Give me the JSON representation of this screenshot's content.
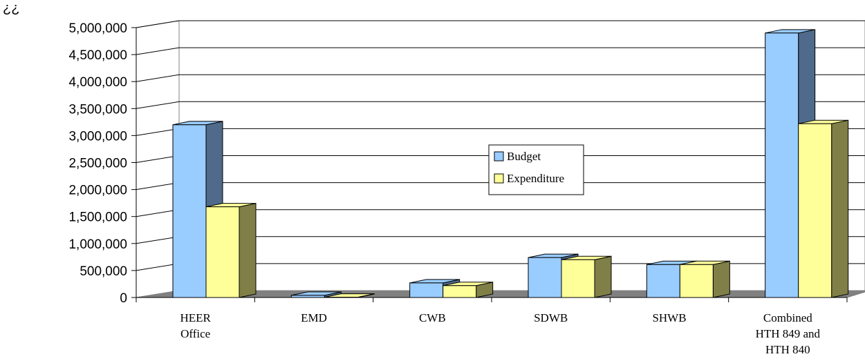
{
  "corner_text": "¿¿",
  "chart_data": {
    "type": "bar",
    "title": "",
    "xlabel": "",
    "ylabel": "",
    "ylim": [
      0,
      5000000
    ],
    "yticks": [
      "0",
      "500,000",
      "1,000,000",
      "1,500,000",
      "2,000,000",
      "2,500,000",
      "3,000,000",
      "3,500,000",
      "4,000,000",
      "4,500,000",
      "5,000,000"
    ],
    "categories": [
      [
        "HEER",
        "Office"
      ],
      [
        "EMD"
      ],
      [
        "CWB"
      ],
      [
        "SDWB"
      ],
      [
        "SHWB"
      ],
      [
        "Combined",
        "HTH 849 and",
        "HTH 840"
      ]
    ],
    "series": [
      {
        "name": "Budget",
        "values": [
          3200000,
          40000,
          270000,
          740000,
          610000,
          4900000
        ],
        "color": "#99ccff",
        "side_color": "#4f6a8a",
        "top_color": "#99ccff"
      },
      {
        "name": "Expenditure",
        "values": [
          1680000,
          5000,
          220000,
          700000,
          610000,
          3220000
        ],
        "color": "#ffff99",
        "side_color": "#7f7f47",
        "top_color": "#ffff99"
      }
    ],
    "grid": true,
    "legend_position": "center"
  }
}
